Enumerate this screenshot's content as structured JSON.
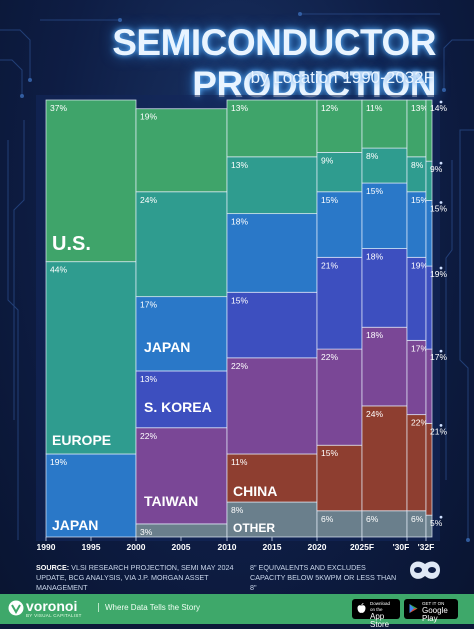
{
  "header": {
    "title": "SEMICONDUCTOR PRODUCTION",
    "subtitle": "by Location 1990-2032F"
  },
  "footer": {
    "source_label": "SOURCE:",
    "source_text": "VLSI RESEARCH PROJECTION, SEMI MAY 2024 UPDATE, BCG ANALYSIS, VIA J.P. MORGAN ASSET MANAGEMENT",
    "note": "8\" EQUIVALENTS AND EXCLUDES CAPACITY BELOW 5KWPM OR LESS THAN 8\"",
    "brand": "voronoi",
    "brand_sub": "BY VISUAL CAPITALIST",
    "tagline": "Where Data Tells the Story",
    "app_store_small": "Download on the",
    "app_store": "App Store",
    "google_play_small": "GET IT ON",
    "google_play": "Google Play"
  },
  "colors": {
    "us": "#3fa46a",
    "europe": "#2f9c8f",
    "japan": "#2a78c8",
    "skorea": "#3d4fbf",
    "taiwan": "#7a4796",
    "china": "#8e3e30",
    "other": "#6a7f8c"
  },
  "chart_data": {
    "type": "area",
    "title": "SEMICONDUCTOR PRODUCTION",
    "subtitle": "by Location 1990-2032F",
    "x_tick_labels": [
      "1990",
      "1995",
      "2000",
      "2005",
      "2010",
      "2015",
      "2020",
      "2025F",
      "'30F",
      "'32F"
    ],
    "periods": [
      "1990",
      "2000",
      "2010",
      "2020",
      "2025F",
      "2030F",
      "2032F"
    ],
    "series": [
      {
        "key": "japan",
        "name": "JAPAN",
        "values": [
          19,
          0,
          0,
          0,
          0,
          0,
          0
        ]
      },
      {
        "key": "other",
        "name": "OTHER",
        "values": [
          0,
          3,
          8,
          6,
          6,
          6,
          5
        ]
      },
      {
        "key": "china",
        "name": "CHINA",
        "values": [
          0,
          0,
          11,
          15,
          24,
          22,
          21
        ]
      },
      {
        "key": "taiwan",
        "name": "TAIWAN",
        "values": [
          0,
          22,
          22,
          22,
          18,
          17,
          17
        ]
      },
      {
        "key": "skorea",
        "name": "S. KOREA",
        "values": [
          0,
          13,
          15,
          21,
          18,
          19,
          19
        ]
      },
      {
        "key": "japan2",
        "name": "JAPAN",
        "values": [
          0,
          17,
          18,
          15,
          15,
          15,
          15
        ]
      },
      {
        "key": "europe",
        "name": "EUROPE",
        "values": [
          44,
          24,
          13,
          9,
          8,
          8,
          9
        ]
      },
      {
        "key": "us",
        "name": "U.S.",
        "values": [
          37,
          19,
          13,
          12,
          11,
          13,
          14
        ]
      }
    ],
    "value_labels": {
      "japan": [
        "19%",
        "",
        "",
        "",
        "",
        "",
        ""
      ],
      "other": [
        "",
        "3%",
        "8%",
        "6%",
        "6%",
        "6%",
        "5%"
      ],
      "china": [
        "",
        "",
        "11%",
        "15%",
        "24%",
        "22%",
        "21%"
      ],
      "taiwan": [
        "",
        "22%",
        "22%",
        "22%",
        "18%",
        "17%",
        "17%"
      ],
      "skorea": [
        "",
        "13%",
        "15%",
        "21%",
        "18%",
        "19%",
        "19%"
      ],
      "japan2": [
        "",
        "17%",
        "18%",
        "15%",
        "15%",
        "15%",
        "15%"
      ],
      "europe": [
        "44%",
        "24%",
        "13%",
        "9%",
        "8%",
        "8%",
        "9%"
      ],
      "us": [
        "37%",
        "19%",
        "13%",
        "12%",
        "11%",
        "13%",
        "14%"
      ]
    },
    "region_labels": [
      "U.S.",
      "EUROPE",
      "JAPAN",
      "JAPAN",
      "S. KOREA",
      "TAIWAN",
      "CHINA",
      "OTHER"
    ],
    "ylim": [
      0,
      100
    ],
    "legend": "none"
  }
}
